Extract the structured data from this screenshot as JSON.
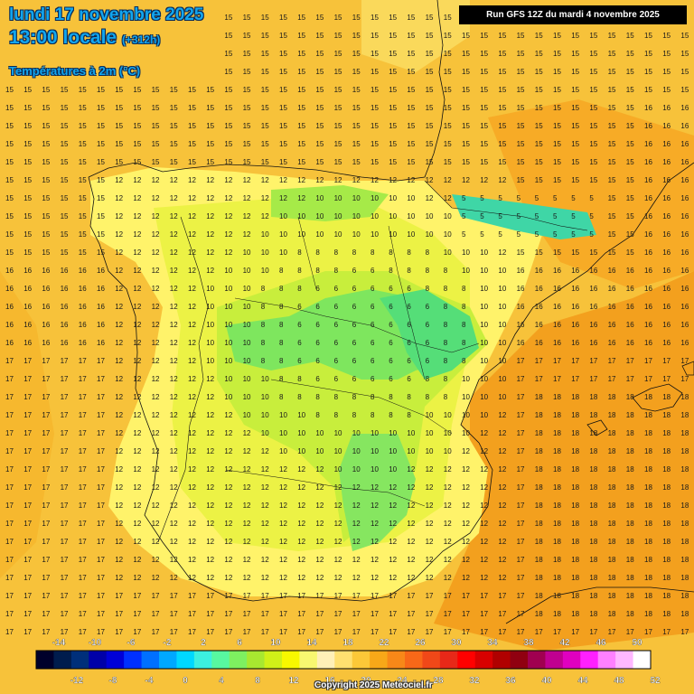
{
  "header": {
    "date_line": "lundi 17 novembre 2025",
    "time_line": "13:00 locale",
    "lead_line": "(+312h)",
    "field_line": "Températures à 2m (°C)"
  },
  "run_info": "Run GFS 12Z du mardi 4 novembre 2025",
  "copyright": "Copyright 2025 Meteociel.fr",
  "legend": {
    "top_labels": [
      "-14",
      "-10",
      "-6",
      "-2",
      "2",
      "6",
      "10",
      "14",
      "18",
      "22",
      "26",
      "30",
      "34",
      "38",
      "42",
      "46",
      "50"
    ],
    "bottom_labels": [
      "-12",
      "-8",
      "-4",
      "0",
      "4",
      "8",
      "12",
      "16",
      "20",
      "24",
      "28",
      "32",
      "36",
      "40",
      "44",
      "48",
      "52"
    ],
    "colors": [
      "#00002b",
      "#001c4d",
      "#002f7a",
      "#0000a8",
      "#0000d8",
      "#0030ff",
      "#0070ff",
      "#00a8ff",
      "#00d8ff",
      "#3cf0e0",
      "#58f8a0",
      "#7ef060",
      "#a8e830",
      "#d0f018",
      "#f8f800",
      "#f8f870",
      "#fff0b8",
      "#ffe070",
      "#fcc838",
      "#f8a818",
      "#f88818",
      "#f86818",
      "#f04818",
      "#e82818",
      "#ff0000",
      "#d80000",
      "#b00000",
      "#900010",
      "#a00050",
      "#c00090",
      "#e000c0",
      "#ff20ff",
      "#ff80ff",
      "#ffb8ff",
      "#ffffff"
    ]
  },
  "zones": [
    {
      "name": "warm-sea",
      "color": "#f8ad22"
    },
    {
      "name": "land-mild",
      "color": "#fff56b"
    },
    {
      "name": "land-cool",
      "color": "#dcee3a"
    },
    {
      "name": "land-cold",
      "color": "#78e65a"
    }
  ]
}
